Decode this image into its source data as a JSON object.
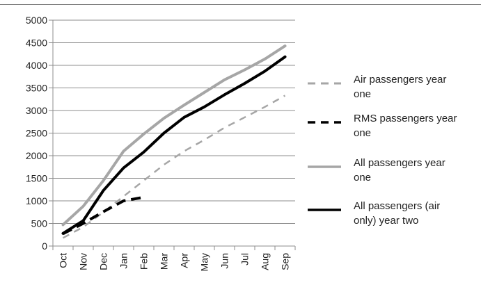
{
  "chart_data": {
    "type": "line",
    "categories": [
      "Oct",
      "Nov",
      "Dec",
      "Jan",
      "Feb",
      "Mar",
      "Apr",
      "May",
      "Jun",
      "Jul",
      "Aug",
      "Sep"
    ],
    "ylim": [
      0,
      5000
    ],
    "yticks": [
      0,
      500,
      1000,
      1500,
      2000,
      2500,
      3000,
      3500,
      4000,
      4500,
      5000
    ],
    "grid": "horizontal",
    "legend_position": "right",
    "series": [
      {
        "name": "Air passengers year one",
        "style": "dashed",
        "color": "#a6a6a6",
        "values": [
          180,
          420,
          750,
          1100,
          1450,
          1800,
          2100,
          2350,
          2620,
          2850,
          3080,
          3330
        ]
      },
      {
        "name": "RMS passengers year one",
        "style": "dashed",
        "color": "#000000",
        "values": [
          270,
          500,
          760,
          1000,
          1080,
          null,
          null,
          null,
          null,
          null,
          null,
          null
        ]
      },
      {
        "name": "All passengers year one",
        "style": "solid",
        "color": "#a6a6a6",
        "values": [
          470,
          880,
          1450,
          2100,
          2480,
          2830,
          3120,
          3400,
          3680,
          3900,
          4140,
          4430
        ]
      },
      {
        "name": "All passengers (air only) year two",
        "style": "solid",
        "color": "#000000",
        "values": [
          280,
          560,
          1230,
          1730,
          2080,
          2500,
          2850,
          3080,
          3350,
          3600,
          3870,
          4190
        ]
      }
    ]
  },
  "legend": {
    "items": [
      {
        "line1": "Air passengers year",
        "line2": "one"
      },
      {
        "line1": "RMS passengers year",
        "line2": "one"
      },
      {
        "line1": "All passengers year",
        "line2": "one"
      },
      {
        "line1": "All passengers (air",
        "line2": "only) year two"
      }
    ]
  }
}
